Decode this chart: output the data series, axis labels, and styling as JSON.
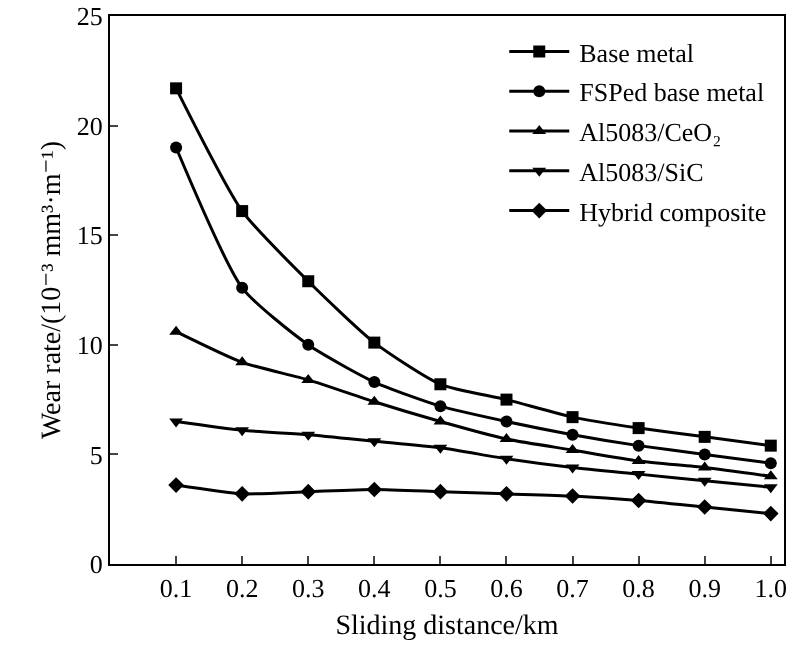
{
  "chart_data": {
    "type": "line",
    "xlabel": "Sliding distance/km",
    "ylabel": "Wear rate/(10⁻³ mm³·m⁻¹)",
    "x": [
      0.1,
      0.2,
      0.3,
      0.4,
      0.5,
      0.6,
      0.7,
      0.8,
      0.9,
      1.0
    ],
    "series": [
      {
        "name": "Base metal",
        "color": "#000000",
        "marker": "square",
        "values": [
          21.7,
          16.1,
          12.9,
          10.1,
          8.2,
          7.5,
          6.7,
          6.2,
          5.8,
          5.4
        ]
      },
      {
        "name": "FSPed base metal",
        "color": "#000000",
        "marker": "circle",
        "values": [
          19.0,
          12.6,
          10.0,
          8.3,
          7.2,
          6.5,
          5.9,
          5.4,
          5.0,
          4.6
        ]
      },
      {
        "name": "Al5083/CeO₂",
        "color": "#000000",
        "marker": "triangle",
        "values": [
          10.6,
          9.2,
          8.4,
          7.4,
          6.5,
          5.7,
          5.2,
          4.7,
          4.4,
          4.0
        ]
      },
      {
        "name": "Al5083/SiC",
        "color": "#000000",
        "marker": "triangle-down",
        "values": [
          6.5,
          6.1,
          5.9,
          5.6,
          5.3,
          4.8,
          4.4,
          4.1,
          3.8,
          3.5
        ]
      },
      {
        "name": "Hybrid composite",
        "color": "#000000",
        "marker": "diamond",
        "values": [
          3.6,
          3.2,
          3.3,
          3.4,
          3.3,
          3.2,
          3.1,
          2.9,
          2.6,
          2.3
        ]
      }
    ],
    "xlim": [
      0,
      1.02
    ],
    "xticks": [
      {
        "value": 0.1,
        "label": "0.1"
      },
      {
        "value": 0.2,
        "label": "0.2"
      },
      {
        "value": 0.3,
        "label": "0.3"
      },
      {
        "value": 0.4,
        "label": "0.4"
      },
      {
        "value": 0.5,
        "label": "0.5"
      },
      {
        "value": 0.6,
        "label": "0.6"
      },
      {
        "value": 0.7,
        "label": "0.7"
      },
      {
        "value": 0.8,
        "label": "0.8"
      },
      {
        "value": 0.9,
        "label": "0.9"
      },
      {
        "value": 1.0,
        "label": "1.0"
      }
    ],
    "ylim": [
      0,
      25
    ],
    "yticks": [
      0,
      5,
      10,
      15,
      20,
      25
    ],
    "grid": false,
    "legend": "top right",
    "line_style": "solid"
  }
}
